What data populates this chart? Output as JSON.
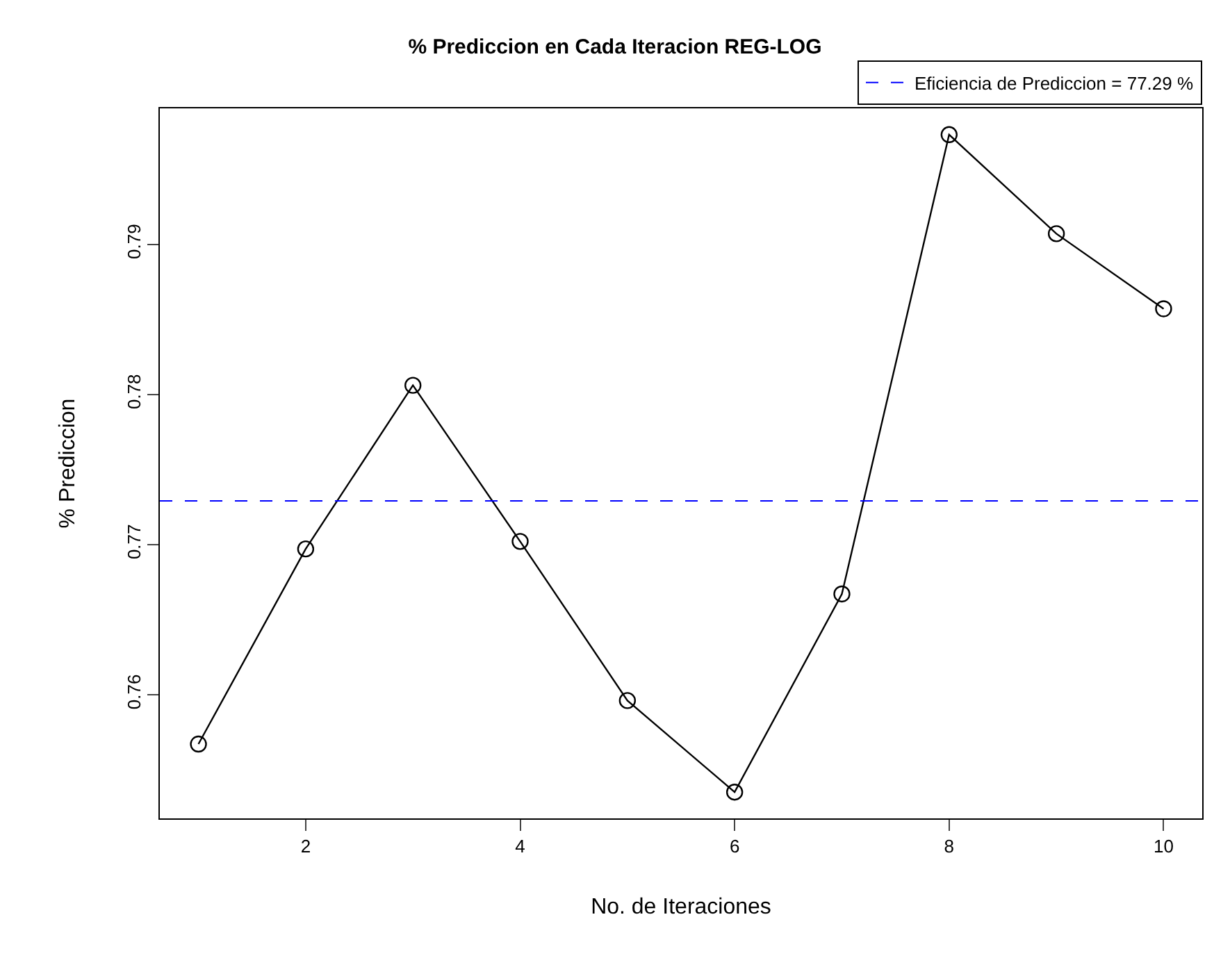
{
  "chart_data": {
    "type": "line",
    "title": "% Prediccion en Cada Iteracion REG-LOG",
    "xlabel": "No. de Iteraciones",
    "ylabel": "% Prediccion",
    "x": [
      1,
      2,
      3,
      4,
      5,
      6,
      7,
      8,
      9,
      10
    ],
    "series": [
      {
        "color": "#000000",
        "values": [
          0.7567,
          0.7697,
          0.7806,
          0.7702,
          0.7596,
          0.7535,
          0.7667,
          0.7973,
          0.7907,
          0.7857
        ]
      }
    ],
    "marker": "circle",
    "line_style": "solid",
    "xlim": [
      0.64,
      10.36
    ],
    "xticks": [
      2,
      4,
      6,
      8,
      10
    ],
    "ylim": [
      0.75175,
      0.79905
    ],
    "yticks": [
      0.76,
      0.77,
      0.78,
      0.79
    ],
    "ref_lines": [
      {
        "axis": "y",
        "value": 0.7729,
        "label": "Eficiencia de Prediccion = 77.29 %",
        "color": "#0000ff",
        "line_style": "dashed"
      }
    ],
    "legend": "top right"
  }
}
